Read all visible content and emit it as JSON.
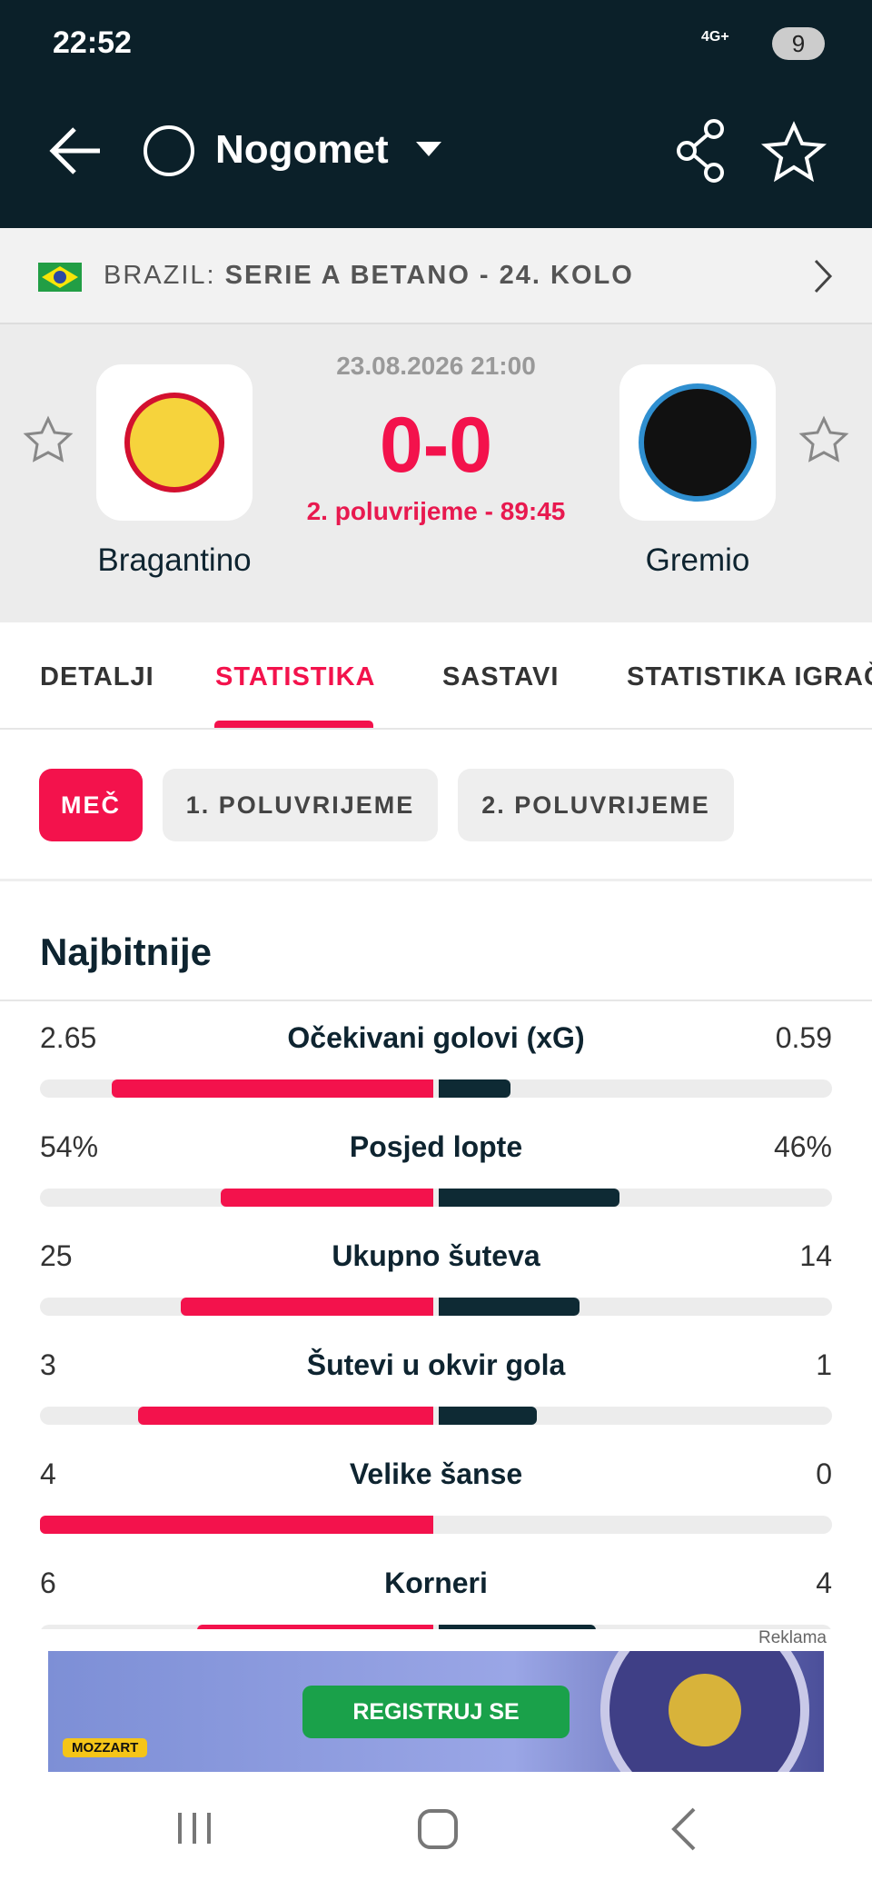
{
  "status_bar": {
    "time": "22:52",
    "network": "4G+",
    "battery": "9"
  },
  "nav": {
    "title": "Nogomet"
  },
  "league": {
    "country": "BRAZIL:",
    "name": "SERIE A BETANO - 24. KOLO"
  },
  "match": {
    "date": "23.08.2026 21:00",
    "score": "0-0",
    "status": "2. poluvrijeme - 89:45",
    "home": "Bragantino",
    "away": "Gremio"
  },
  "tabs": [
    "DETALJI",
    "STATISTIKA",
    "SASTAVI",
    "STATISTIKA IGRAČA"
  ],
  "chips": [
    "MEČ",
    "1. POLUVRIJEME",
    "2. POLUVRIJEME"
  ],
  "section_title": "Najbitnije",
  "stats": [
    {
      "name": "Očekivani golovi (xG)",
      "home": 2.65,
      "away": 0.59
    },
    {
      "name": "Posjed lopte",
      "home": 54,
      "away": 46,
      "home_label": "54%",
      "away_label": "46%"
    },
    {
      "name": "Ukupno šuteva",
      "home": 25,
      "away": 14
    },
    {
      "name": "Šutevi u okvir gola",
      "home": 3,
      "away": 1
    },
    {
      "name": "Velike šanse",
      "home": 4,
      "away": 0
    },
    {
      "name": "Korneri",
      "home": 6,
      "away": 4
    }
  ],
  "ad": {
    "label": "Reklama",
    "button": "REGISTRUJ SE",
    "brand": "MOZZART"
  }
}
